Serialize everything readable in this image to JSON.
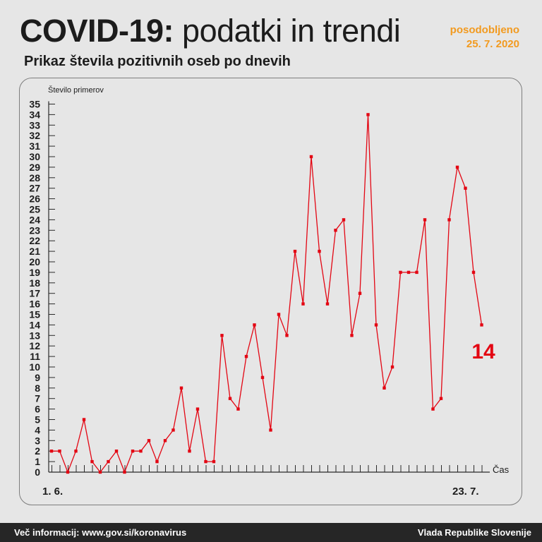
{
  "header": {
    "title_bold": "COVID-19:",
    "title_rest": " podatki in trendi",
    "subtitle": "Prikaz števila pozitivnih oseb po dnevih",
    "updated_label": "posodobljeno",
    "updated_date": "25. 7. 2020"
  },
  "footer": {
    "info": "Več informacij: www.gov.si/koronavirus",
    "source": "Vlada Republike Slovenije"
  },
  "colors": {
    "accent": "#f29a1f",
    "series": "#e30613",
    "axis": "#2a2a2a"
  },
  "chart_data": {
    "type": "line",
    "title": "Prikaz števila pozitivnih oseb po dnevih",
    "ylabel": "Število primerov",
    "xlabel": "Čas",
    "x_start_label": "1. 6.",
    "x_end_label": "23. 7.",
    "ylim": [
      0,
      35
    ],
    "yticks": [
      0,
      1,
      2,
      3,
      4,
      5,
      6,
      7,
      8,
      9,
      10,
      11,
      12,
      13,
      14,
      15,
      16,
      17,
      18,
      19,
      20,
      21,
      22,
      23,
      24,
      25,
      26,
      27,
      28,
      29,
      30,
      31,
      32,
      33,
      34,
      35
    ],
    "grid": false,
    "latest_value_label": "14",
    "series": [
      {
        "values": [
          2,
          2,
          0,
          2,
          5,
          1,
          0,
          1,
          2,
          0,
          2,
          2,
          3,
          1,
          3,
          4,
          8,
          2,
          6,
          1,
          1,
          13,
          7,
          6,
          11,
          14,
          9,
          4,
          15,
          13,
          21,
          16,
          30,
          21,
          16,
          23,
          24,
          13,
          17,
          34,
          14,
          8,
          10,
          19,
          19,
          19,
          24,
          6,
          7,
          24,
          29,
          27,
          19,
          14
        ]
      }
    ]
  }
}
